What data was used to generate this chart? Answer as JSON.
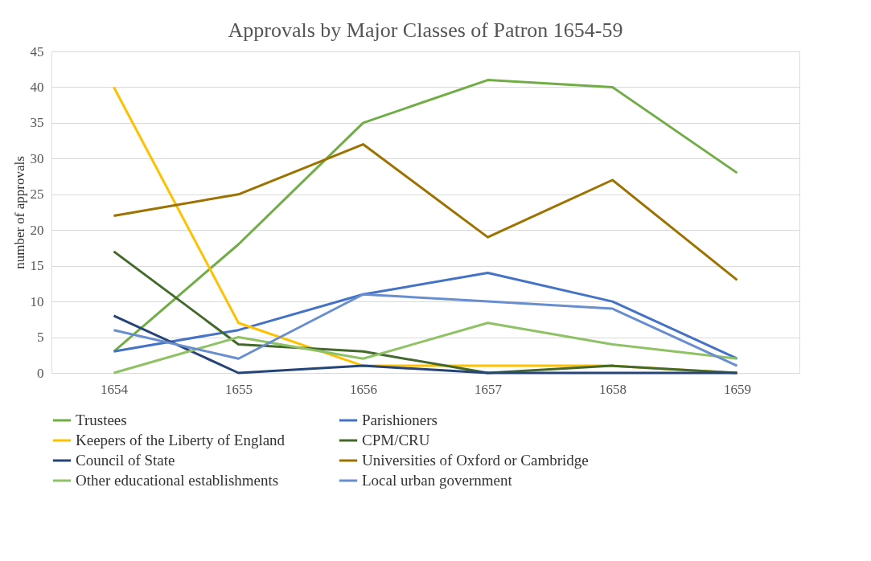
{
  "chart_data": {
    "type": "line",
    "title": "Approvals by Major Classes of Patron 1654-59",
    "ylabel": "number of approvals",
    "categories": [
      "1654",
      "1655",
      "1656",
      "1657",
      "1658",
      "1659"
    ],
    "series": [
      {
        "name": "Trustees",
        "color": "#70ad47",
        "values": [
          3,
          18,
          35,
          41,
          40,
          28
        ]
      },
      {
        "name": "Parishioners",
        "color": "#4472c4",
        "values": [
          3,
          6,
          11,
          14,
          10,
          2
        ]
      },
      {
        "name": "Keepers of the Liberty of England",
        "color": "#ffc000",
        "values": [
          40,
          7,
          1,
          1,
          1,
          0
        ]
      },
      {
        "name": "CPM/CRU",
        "color": "#43682b",
        "values": [
          17,
          4,
          3,
          0,
          1,
          0
        ]
      },
      {
        "name": "Council of State",
        "color": "#264478",
        "values": [
          8,
          0,
          1,
          0,
          0,
          0
        ]
      },
      {
        "name": "Universities of Oxford or Cambridge",
        "color": "#9e7200",
        "values": [
          22,
          25,
          32,
          19,
          27,
          13
        ]
      },
      {
        "name": "Other educational establishments",
        "color": "#8fc266",
        "values": [
          0,
          5,
          2,
          7,
          4,
          2
        ]
      },
      {
        "name": "Local urban government",
        "color": "#698ed0",
        "values": [
          6,
          2,
          11,
          10,
          9,
          1
        ]
      }
    ],
    "ylim": [
      0,
      45
    ],
    "yticks": [
      0,
      5,
      10,
      15,
      20,
      25,
      30,
      35,
      40,
      45
    ],
    "grid": "y",
    "legend": "bottom",
    "marker": "none",
    "line_style": "solid"
  }
}
